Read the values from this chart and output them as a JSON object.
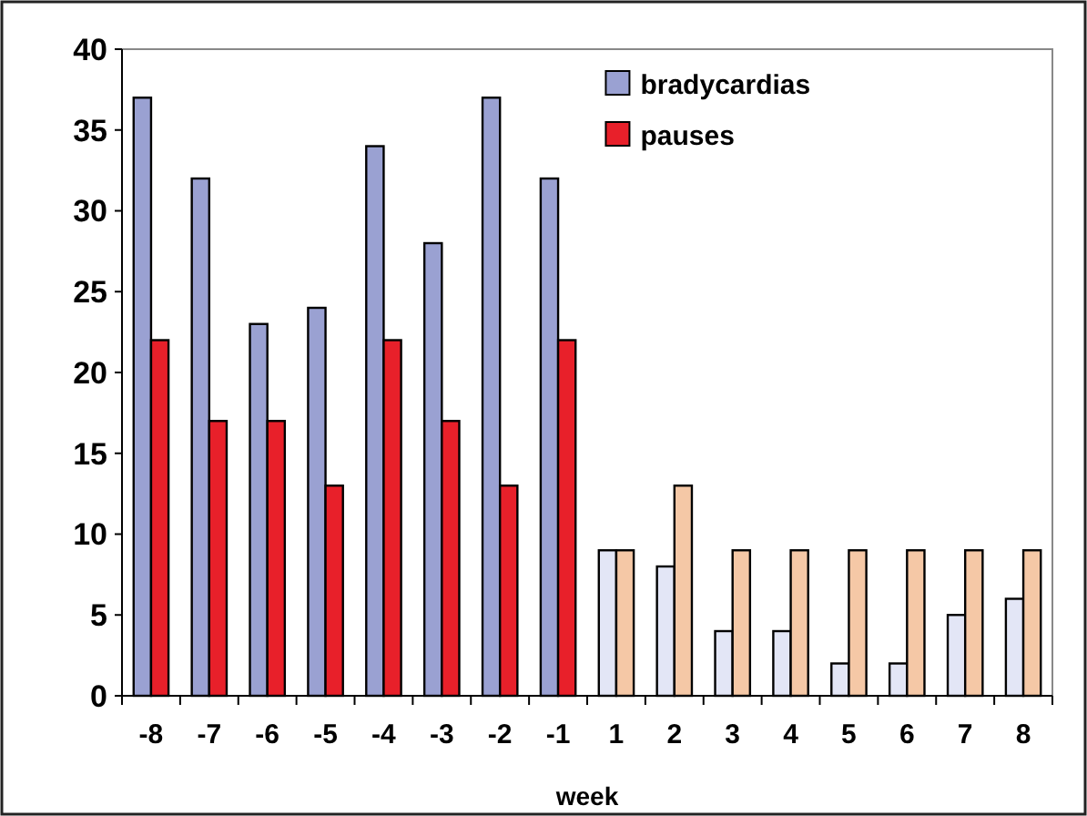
{
  "chart_data": {
    "type": "bar",
    "xlabel": "week",
    "categories": [
      "-8",
      "-7",
      "-6",
      "-5",
      "-4",
      "-3",
      "-2",
      "-1",
      "1",
      "2",
      "3",
      "4",
      "5",
      "6",
      "7",
      "8"
    ],
    "series": [
      {
        "name": "bradycardias",
        "color": "#9aa1d2",
        "colors": [
          "#9aa1d2",
          "#9aa1d2",
          "#9aa1d2",
          "#9aa1d2",
          "#9aa1d2",
          "#9aa1d2",
          "#9aa1d2",
          "#9aa1d2",
          "#e3e6f6",
          "#e3e6f6",
          "#e3e6f6",
          "#e3e6f6",
          "#e3e6f6",
          "#e3e6f6",
          "#e3e6f6",
          "#e3e6f6"
        ],
        "values": [
          37,
          32,
          23,
          24,
          34,
          28,
          37,
          32,
          9,
          8,
          4,
          4,
          2,
          2,
          5,
          6
        ]
      },
      {
        "name": "pauses",
        "color": "#e8202a",
        "colors": [
          "#e8202a",
          "#e8202a",
          "#e8202a",
          "#e8202a",
          "#e8202a",
          "#e8202a",
          "#e8202a",
          "#e8202a",
          "#f5c8a6",
          "#f5c8a6",
          "#f5c8a6",
          "#f5c8a6",
          "#f5c8a6",
          "#f5c8a6",
          "#f5c8a6",
          "#f5c8a6"
        ],
        "values": [
          22,
          17,
          17,
          13,
          22,
          17,
          13,
          22,
          9,
          13,
          9,
          9,
          9,
          9,
          9,
          9
        ]
      }
    ],
    "ylim": [
      0,
      40
    ],
    "yticks": [
      0,
      5,
      10,
      15,
      20,
      25,
      30,
      35,
      40
    ],
    "legend": "top right",
    "grid": false
  }
}
